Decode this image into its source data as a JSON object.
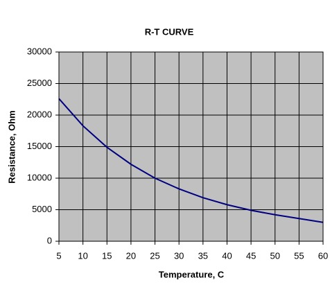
{
  "chart_data": {
    "type": "line",
    "title": "R-T CURVE",
    "x_label": "Temperature, C",
    "y_label": "Resistance, Ohm",
    "x": [
      5,
      10,
      15,
      20,
      25,
      30,
      35,
      40,
      45,
      50,
      55,
      60
    ],
    "values": [
      22600,
      18300,
      14900,
      12200,
      10000,
      8300,
      6900,
      5800,
      4900,
      4200,
      3600,
      3000
    ],
    "color": "#000080",
    "plot_background": "#c0c0c0",
    "xlim": [
      5,
      60
    ],
    "xticks": [
      5,
      10,
      15,
      20,
      25,
      30,
      35,
      40,
      45,
      50,
      55,
      60
    ],
    "ylim": [
      0,
      30000
    ],
    "yticks": [
      0,
      5000,
      10000,
      15000,
      20000,
      25000,
      30000
    ],
    "grid": true
  }
}
